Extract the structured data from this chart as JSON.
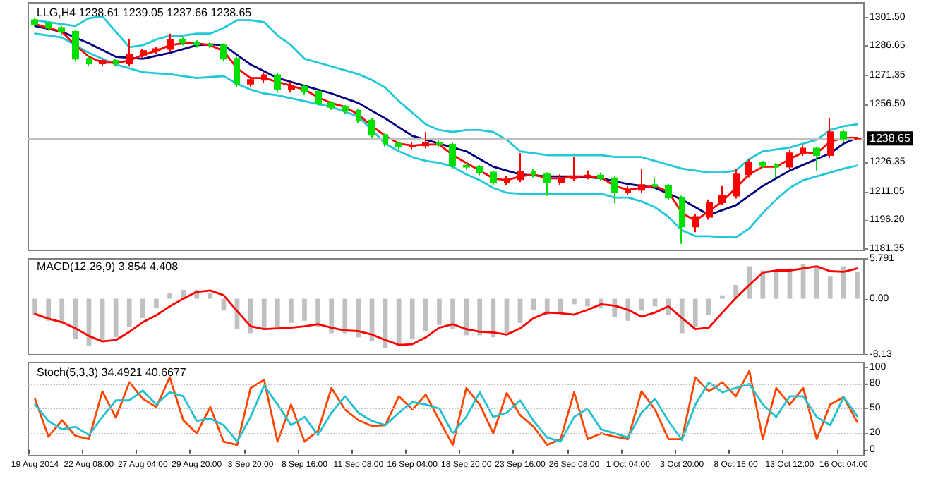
{
  "chart_data": [
    {
      "type": "candlestick",
      "title": "LLG,H4 1238.61 1239.05 1237.66 1238.65",
      "tick_labels": "y",
      "marker": "none",
      "ohlc": [
        [
          1300,
          1301,
          1296.5,
          1298
        ],
        [
          1298,
          1299,
          1294.5,
          1296
        ],
        [
          1296,
          1297,
          1292.5,
          1294
        ],
        [
          1294,
          1295,
          1278.5,
          1280
        ],
        [
          1280,
          1281,
          1276,
          1277.5
        ],
        [
          1277.5,
          1280,
          1276,
          1279
        ],
        [
          1279,
          1280,
          1276,
          1277.5
        ],
        [
          1277.5,
          1290,
          1276,
          1282
        ],
        [
          1282,
          1285,
          1280.5,
          1284
        ],
        [
          1284,
          1286,
          1282.5,
          1285
        ],
        [
          1285,
          1293,
          1283.5,
          1290
        ],
        [
          1290,
          1291,
          1287,
          1288.5
        ],
        [
          1288.5,
          1289.5,
          1285.8,
          1287.3
        ],
        [
          1287.3,
          1288.3,
          1285.5,
          1287
        ],
        [
          1287,
          1288,
          1278.5,
          1280
        ],
        [
          1280,
          1281,
          1265.5,
          1267
        ],
        [
          1267,
          1270,
          1265.5,
          1269
        ],
        [
          1269,
          1273,
          1267.5,
          1271.5
        ],
        [
          1271.5,
          1272.5,
          1262.5,
          1264
        ],
        [
          1264,
          1268,
          1262.5,
          1265.5
        ],
        [
          1265.5,
          1266.5,
          1261.5,
          1263
        ],
        [
          1263,
          1264,
          1255.5,
          1257
        ],
        [
          1257,
          1258,
          1253.5,
          1255
        ],
        [
          1255,
          1256,
          1251.5,
          1253
        ],
        [
          1253,
          1254,
          1246.5,
          1248
        ],
        [
          1248,
          1249,
          1239,
          1240.5
        ],
        [
          1240.5,
          1241.5,
          1234.5,
          1236
        ],
        [
          1236,
          1237,
          1233,
          1234.5
        ],
        [
          1234.5,
          1237,
          1233,
          1235
        ],
        [
          1235,
          1242,
          1233.5,
          1236.5
        ],
        [
          1236.5,
          1238,
          1234,
          1235.5
        ],
        [
          1235.5,
          1236.5,
          1223,
          1224.5
        ],
        [
          1224.5,
          1226,
          1222.5,
          1224
        ],
        [
          1224,
          1225,
          1219.5,
          1221
        ],
        [
          1221,
          1222,
          1214.5,
          1216
        ],
        [
          1216,
          1219,
          1214.5,
          1217.5
        ],
        [
          1217.5,
          1231,
          1216,
          1221.5
        ],
        [
          1221.5,
          1223,
          1218.5,
          1220
        ],
        [
          1220,
          1221,
          1209,
          1216
        ],
        [
          1216,
          1220,
          1214.5,
          1218
        ],
        [
          1218,
          1229,
          1216.5,
          1219
        ],
        [
          1219,
          1222,
          1217.5,
          1219.5
        ],
        [
          1219.5,
          1221,
          1216.5,
          1218
        ],
        [
          1218,
          1219,
          1205,
          1211
        ],
        [
          1211,
          1214,
          1209.5,
          1212
        ],
        [
          1212,
          1223,
          1210.5,
          1214.5
        ],
        [
          1214.5,
          1218,
          1212.5,
          1214
        ],
        [
          1214,
          1215,
          1206.5,
          1208
        ],
        [
          1208,
          1209,
          1184,
          1193
        ],
        [
          1193,
          1199.5,
          1190,
          1198
        ],
        [
          1198,
          1207,
          1196.5,
          1205.5
        ],
        [
          1205.5,
          1214,
          1204,
          1209
        ],
        [
          1209,
          1223,
          1207.5,
          1220
        ],
        [
          1220,
          1228,
          1218.5,
          1226
        ],
        [
          1226,
          1227,
          1223.5,
          1225
        ],
        [
          1225,
          1226,
          1218,
          1224
        ],
        [
          1224,
          1233,
          1222.5,
          1231
        ],
        [
          1231,
          1235,
          1229.5,
          1233.5
        ],
        [
          1233.5,
          1234.5,
          1222,
          1230
        ],
        [
          1230,
          1249,
          1228.5,
          1242
        ],
        [
          1242,
          1243,
          1237,
          1238.61
        ],
        [
          1238.61,
          1239.05,
          1237.66,
          1238.65
        ]
      ],
      "colors": [
        "#00e000",
        "#00e000",
        "#00e000",
        "#00e000",
        "#00e000",
        "#ff0000",
        "#00e000",
        "#ff0000",
        "#ff0000",
        "#ff0000",
        "#ff0000",
        "#00e000",
        "#00e000",
        "#00e000",
        "#00e000",
        "#00e000",
        "#ff0000",
        "#ff0000",
        "#00e000",
        "#ff0000",
        "#00e000",
        "#00e000",
        "#00e000",
        "#00e000",
        "#00e000",
        "#00e000",
        "#00e000",
        "#00e000",
        "#ff0000",
        "#ff0000",
        "#00e000",
        "#00e000",
        "#00e000",
        "#00e000",
        "#00e000",
        "#ff0000",
        "#ff0000",
        "#00e000",
        "#00e000",
        "#ff0000",
        "#ff0000",
        "#ff0000",
        "#00e000",
        "#00e000",
        "#ff0000",
        "#ff0000",
        "#00e000",
        "#00e000",
        "#00e000",
        "#ff0000",
        "#ff0000",
        "#ff0000",
        "#ff0000",
        "#ff0000",
        "#00e000",
        "#00e000",
        "#ff0000",
        "#ff0000",
        "#00e000",
        "#ff0000",
        "#00e000",
        "#ff0000"
      ],
      "series": [
        {
          "type": "line",
          "color": "#20c8d8",
          "values": [
            1300,
            1299,
            1298,
            1297,
            1301,
            1302,
            1294,
            1286,
            1287,
            1290,
            1292,
            1292,
            1293,
            1293,
            1296,
            1300,
            1300,
            1299,
            1292,
            1287,
            1280,
            1278,
            1276,
            1274,
            1272,
            1269,
            1265,
            1258,
            1252,
            1246,
            1243,
            1242,
            1243,
            1243,
            1242,
            1238,
            1232,
            1231,
            1230,
            1230,
            1230,
            1230,
            1230,
            1229,
            1229,
            1229,
            1227,
            1225,
            1223,
            1222,
            1221,
            1221,
            1222,
            1228,
            1232,
            1233,
            1234,
            1236,
            1238,
            1243,
            1245,
            1246
          ]
        },
        {
          "type": "line",
          "color": "#20c8d8",
          "values": [
            1293,
            1292,
            1291,
            1287,
            1283,
            1280,
            1277,
            1275,
            1273,
            1272.5,
            1272,
            1271,
            1270,
            1270.5,
            1271,
            1267,
            1264,
            1262,
            1261,
            1259.5,
            1258,
            1256.5,
            1255,
            1252.5,
            1250,
            1243,
            1236,
            1232,
            1229,
            1227,
            1226,
            1224,
            1220,
            1217,
            1213,
            1210.5,
            1210,
            1210,
            1210,
            1210,
            1210,
            1210,
            1210,
            1208,
            1208,
            1206,
            1203,
            1198,
            1191,
            1188,
            1188,
            1187.5,
            1187.3,
            1192,
            1200,
            1207,
            1213,
            1217,
            1219,
            1221,
            1223,
            1224.6
          ]
        },
        {
          "type": "line",
          "color": "#000080",
          "values": [
            1297,
            1295.5,
            1294,
            1291,
            1288,
            1284.5,
            1281,
            1280.5,
            1280,
            1281.5,
            1283,
            1285,
            1287,
            1287.5,
            1287,
            1282,
            1277,
            1273.5,
            1270,
            1268,
            1266,
            1264,
            1262,
            1259.5,
            1257,
            1253,
            1249,
            1244.5,
            1240,
            1238,
            1236,
            1234,
            1232,
            1228,
            1224,
            1222,
            1220,
            1219.5,
            1219,
            1219,
            1219,
            1218.5,
            1218,
            1216.5,
            1215,
            1214,
            1213,
            1210,
            1207,
            1203,
            1199,
            1201.5,
            1204,
            1209,
            1214,
            1218,
            1222,
            1225,
            1228,
            1231,
            1236,
            1239
          ]
        },
        {
          "type": "line",
          "color": "#ff0000",
          "values": [
            1298,
            1296,
            1294,
            1287,
            1281,
            1278,
            1278,
            1279,
            1282,
            1284,
            1287,
            1288,
            1288,
            1287,
            1284,
            1275,
            1270,
            1270,
            1268,
            1266,
            1264,
            1260,
            1257,
            1255,
            1251,
            1245,
            1240,
            1236,
            1235,
            1235.5,
            1235.5,
            1230,
            1226,
            1222,
            1218,
            1217,
            1219,
            1220,
            1218,
            1218,
            1219,
            1219,
            1218.5,
            1214,
            1212,
            1213,
            1214,
            1211,
            1200,
            1196,
            1201,
            1206,
            1213,
            1220,
            1224,
            1224,
            1228,
            1231.5,
            1231,
            1237,
            1239,
            1239
          ]
        }
      ],
      "ylim": [
        1180.6,
        1309
      ],
      "yticks": [
        1181.35,
        {
          "value": 1196.2,
          "label": "1196.20"
        },
        1211.05,
        1226.35,
        {
          "value": 1256.5,
          "label": "1256.50"
        },
        1271.35,
        1286.65,
        {
          "value": 1301.5,
          "label": "1301.50"
        }
      ],
      "ref_lines": [
        {
          "axis": "y",
          "value": 1238.65,
          "label": "1238.65",
          "color": "#c0c0c0"
        }
      ]
    },
    {
      "type": "bar",
      "title": "MACD(12,26,9) 3.854 4.408",
      "tick_labels": "y",
      "marker": "none",
      "series": [
        {
          "type": "bar",
          "color": "#c0c0c0",
          "values": [
            -2.3,
            -3.2,
            -3.5,
            -5.9,
            -6.8,
            -6.2,
            -5.6,
            -4.1,
            -2.8,
            -1.4,
            0.8,
            1.3,
            1.3,
            0.8,
            -1.7,
            -4.4,
            -5.0,
            -4.4,
            -4.1,
            -3.5,
            -3.2,
            -4.1,
            -5.0,
            -5.0,
            -5.6,
            -6.2,
            -7.2,
            -6.8,
            -5.9,
            -4.7,
            -3.8,
            -4.4,
            -5.3,
            -5.3,
            -5.6,
            -5.0,
            -3.5,
            -1.7,
            -2.3,
            -2.0,
            -0.8,
            -1.1,
            -1.4,
            -2.6,
            -3.2,
            -1.7,
            -1.1,
            -2.3,
            -5.0,
            -4.1,
            -2.3,
            0.5,
            2.0,
            4.7,
            4.1,
            3.9,
            4.4,
            5.0,
            4.7,
            3.2,
            4.7,
            3.9
          ]
        },
        {
          "type": "line",
          "color": "#ff0000",
          "values": [
            -2.2,
            -2.9,
            -3.4,
            -4.3,
            -5.4,
            -6.2,
            -6.0,
            -4.8,
            -3.4,
            -2.4,
            -1.1,
            0.0,
            1.0,
            1.2,
            0.5,
            -1.8,
            -4.0,
            -4.4,
            -4.3,
            -4.2,
            -4.0,
            -3.7,
            -4.2,
            -4.6,
            -4.7,
            -5.2,
            -6.0,
            -6.7,
            -6.6,
            -5.6,
            -4.2,
            -3.7,
            -4.4,
            -4.8,
            -4.9,
            -5.2,
            -4.3,
            -2.8,
            -2.0,
            -2.1,
            -2.3,
            -1.6,
            -0.8,
            -1.0,
            -1.6,
            -2.6,
            -2.0,
            -1.1,
            -2.8,
            -4.4,
            -4.2,
            -2.0,
            0.1,
            2.0,
            3.8,
            4.1,
            4.1,
            4.4,
            4.7,
            4.0,
            3.9,
            4.4
          ]
        }
      ],
      "ylim": [
        -8.13,
        5.791
      ],
      "yticks": [
        -8.13,
        {
          "value": 0,
          "label": "0.00"
        },
        5.791
      ]
    },
    {
      "type": "line",
      "title": "Stoch(5,3,3) 34.4921 40.6677",
      "marker": "none",
      "categories": [
        "19 Aug 2014",
        null,
        null,
        null,
        "22 Aug 08:00",
        null,
        null,
        null,
        "27 Aug 04:00",
        null,
        null,
        null,
        "29 Aug 20:00",
        null,
        null,
        null,
        "3 Sep 20:00",
        null,
        null,
        null,
        "8 Sep 16:00",
        null,
        null,
        null,
        "11 Sep 08:00",
        null,
        null,
        null,
        "16 Sep 04:00",
        null,
        null,
        null,
        "18 Sep 20:00",
        null,
        null,
        null,
        "23 Sep 16:00",
        null,
        null,
        null,
        "26 Sep 08:00",
        null,
        null,
        null,
        "1 Oct 04:00",
        null,
        null,
        null,
        "3 Oct 20:00",
        null,
        null,
        null,
        "8 Oct 16:00",
        null,
        null,
        null,
        "13 Oct 12:00",
        null,
        null,
        null,
        "16 Oct 04:00",
        null
      ],
      "series": [
        {
          "color": "#ff4500",
          "values": [
            62,
            16,
            36,
            17,
            13,
            71,
            39,
            82,
            62,
            52,
            88,
            36,
            20,
            52,
            10,
            6,
            75,
            85,
            10,
            55,
            10,
            23,
            75,
            49,
            36,
            29,
            30,
            65,
            49,
            67,
            36,
            6,
            75,
            55,
            20,
            69,
            42,
            28,
            6,
            13,
            70,
            13,
            20,
            16,
            13,
            71,
            49,
            13,
            13,
            88,
            71,
            82,
            65,
            96,
            13,
            75,
            55,
            75,
            13,
            55,
            64,
            34
          ]
        },
        {
          "color": "#20c0d0",
          "values": [
            55,
            35,
            25,
            28,
            18,
            40,
            60,
            60,
            72,
            55,
            70,
            65,
            35,
            38,
            30,
            10,
            40,
            78,
            55,
            30,
            40,
            18,
            45,
            65,
            45,
            35,
            30,
            45,
            58,
            55,
            50,
            20,
            40,
            70,
            40,
            45,
            60,
            35,
            15,
            10,
            40,
            50,
            25,
            20,
            15,
            45,
            62,
            35,
            12,
            55,
            82,
            70,
            75,
            80,
            55,
            40,
            65,
            65,
            40,
            30,
            64,
            41
          ]
        }
      ],
      "ylim": [
        -7,
        106
      ],
      "yticks": [
        0,
        20,
        50,
        80,
        100
      ],
      "ref_lines": [
        {
          "axis": "y",
          "value": 20,
          "color": "#c0c0c0",
          "line_style": "dotted"
        },
        {
          "axis": "y",
          "value": 50,
          "color": "#c0c0c0",
          "line_style": "dotted"
        },
        {
          "axis": "y",
          "value": 80,
          "color": "#c0c0c0",
          "line_style": "dotted"
        }
      ]
    }
  ]
}
